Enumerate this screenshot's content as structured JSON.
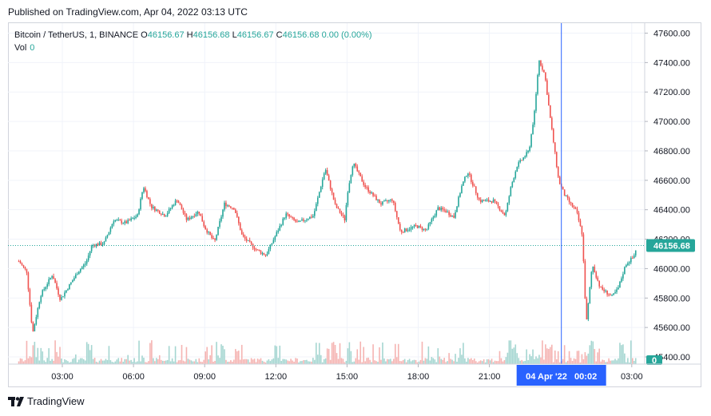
{
  "published": "Published on TradingView.com, Apr 04, 2022 03:13 UTC",
  "legend": {
    "symbol": "Bitcoin / TetherUS, 1, BINANCE",
    "open_label": "O",
    "open": "46156.67",
    "high_label": "H",
    "high": "46156.68",
    "low_label": "L",
    "low": "46156.67",
    "close_label": "C",
    "close": "46156.68",
    "change": "0.00 (0.00%)",
    "vol_label": "Vol",
    "vol_value": "0"
  },
  "footer": {
    "brand": "TradingView"
  },
  "colors": {
    "up": "#26a69a",
    "down": "#ef5350",
    "crosshair": "#2962ff",
    "last_price_bg": "#26a69a",
    "time_highlight_bg": "#2962ff",
    "volume_zero_bg": "#26a69a"
  },
  "chart_data": {
    "type": "candlestick",
    "symbol": "Bitcoin / TetherUS",
    "interval": "1",
    "exchange": "BINANCE",
    "y_ticks": [
      "47600.00",
      "47400.00",
      "47200.00",
      "47000.00",
      "46800.00",
      "46600.00",
      "46400.00",
      "46200.00",
      "46000.00",
      "45800.00",
      "45600.00",
      "45400.00"
    ],
    "y_range": [
      45340,
      47640
    ],
    "x_ticks": [
      "03:00",
      "06:00",
      "09:00",
      "12:00",
      "15:00",
      "18:00",
      "21:00",
      "03:00"
    ],
    "crosshair_time_label": "04 Apr '22   00:02",
    "last_price_label": "46156.68",
    "volume_label": "0",
    "price_path": [
      {
        "t": "01:10",
        "p": 46050
      },
      {
        "t": "01:30",
        "p": 45980
      },
      {
        "t": "01:45",
        "p": 45560
      },
      {
        "t": "02:05",
        "p": 45820
      },
      {
        "t": "02:35",
        "p": 45960
      },
      {
        "t": "02:55",
        "p": 45790
      },
      {
        "t": "03:40",
        "p": 45980
      },
      {
        "t": "04:00",
        "p": 46040
      },
      {
        "t": "04:15",
        "p": 46160
      },
      {
        "t": "04:45",
        "p": 46170
      },
      {
        "t": "05:10",
        "p": 46330
      },
      {
        "t": "05:40",
        "p": 46310
      },
      {
        "t": "06:10",
        "p": 46360
      },
      {
        "t": "06:25",
        "p": 46560
      },
      {
        "t": "06:45",
        "p": 46420
      },
      {
        "t": "07:20",
        "p": 46360
      },
      {
        "t": "07:50",
        "p": 46470
      },
      {
        "t": "08:15",
        "p": 46330
      },
      {
        "t": "08:45",
        "p": 46390
      },
      {
        "t": "09:00",
        "p": 46280
      },
      {
        "t": "09:25",
        "p": 46180
      },
      {
        "t": "09:50",
        "p": 46440
      },
      {
        "t": "10:15",
        "p": 46410
      },
      {
        "t": "10:35",
        "p": 46220
      },
      {
        "t": "11:10",
        "p": 46130
      },
      {
        "t": "11:35",
        "p": 46090
      },
      {
        "t": "12:00",
        "p": 46230
      },
      {
        "t": "12:25",
        "p": 46370
      },
      {
        "t": "12:55",
        "p": 46310
      },
      {
        "t": "13:35",
        "p": 46360
      },
      {
        "t": "14:05",
        "p": 46680
      },
      {
        "t": "14:30",
        "p": 46430
      },
      {
        "t": "14:55",
        "p": 46330
      },
      {
        "t": "15:00",
        "p": 46500
      },
      {
        "t": "15:15",
        "p": 46720
      },
      {
        "t": "15:45",
        "p": 46560
      },
      {
        "t": "16:25",
        "p": 46440
      },
      {
        "t": "16:55",
        "p": 46470
      },
      {
        "t": "17:15",
        "p": 46250
      },
      {
        "t": "17:55",
        "p": 46290
      },
      {
        "t": "18:20",
        "p": 46260
      },
      {
        "t": "18:50",
        "p": 46410
      },
      {
        "t": "19:10",
        "p": 46390
      },
      {
        "t": "19:30",
        "p": 46350
      },
      {
        "t": "19:50",
        "p": 46560
      },
      {
        "t": "20:05",
        "p": 46660
      },
      {
        "t": "20:35",
        "p": 46460
      },
      {
        "t": "21:10",
        "p": 46460
      },
      {
        "t": "21:40",
        "p": 46360
      },
      {
        "t": "21:55",
        "p": 46560
      },
      {
        "t": "22:10",
        "p": 46700
      },
      {
        "t": "22:40",
        "p": 46800
      },
      {
        "t": "22:55",
        "p": 47080
      },
      {
        "t": "23:05",
        "p": 47420
      },
      {
        "t": "23:20",
        "p": 47320
      },
      {
        "t": "23:35",
        "p": 47000
      },
      {
        "t": "23:55",
        "p": 46600
      },
      {
        "t": "00:10",
        "p": 46500
      },
      {
        "t": "00:25",
        "p": 46440
      },
      {
        "t": "00:40",
        "p": 46390
      },
      {
        "t": "00:55",
        "p": 46230
      },
      {
        "t": "01:05",
        "p": 45620
      },
      {
        "t": "01:20",
        "p": 46030
      },
      {
        "t": "01:40",
        "p": 45870
      },
      {
        "t": "02:10",
        "p": 45810
      },
      {
        "t": "02:25",
        "p": 45860
      },
      {
        "t": "02:45",
        "p": 46030
      },
      {
        "t": "03:05",
        "p": 46080
      },
      {
        "t": "03:13",
        "p": 46157
      }
    ]
  }
}
